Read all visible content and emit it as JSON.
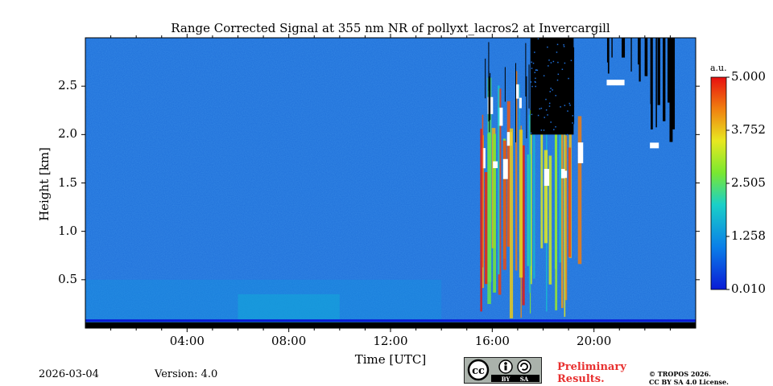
{
  "chart_data": {
    "type": "heatmap",
    "title": "Range Corrected Signal at 355 nm NR of pollyxt_lacros2 at Invercargill",
    "xlabel": "Time [UTC]",
    "ylabel": "Height [km]",
    "xlim": [
      0,
      24
    ],
    "ylim": [
      0,
      3.0
    ],
    "xticks": [
      {
        "value": 4,
        "label": "04:00"
      },
      {
        "value": 8,
        "label": "08:00"
      },
      {
        "value": 12,
        "label": "12:00"
      },
      {
        "value": 16,
        "label": "16:00"
      },
      {
        "value": 20,
        "label": "20:00"
      }
    ],
    "yticks": [
      {
        "value": 0.5,
        "label": "0.5"
      },
      {
        "value": 1.0,
        "label": "1.0"
      },
      {
        "value": 1.5,
        "label": "1.5"
      },
      {
        "value": 2.0,
        "label": "2.0"
      },
      {
        "value": 2.5,
        "label": "2.5"
      }
    ],
    "colorbar": {
      "unit": "a.u.",
      "min": 0.01,
      "max": 5.0,
      "ticks": [
        "5.000",
        "3.752",
        "2.505",
        "1.258",
        "0.010"
      ]
    },
    "features": [
      {
        "name": "boundary-layer",
        "t_start": 0,
        "t_end": 14,
        "h_top": 0.5,
        "value": 1.3
      },
      {
        "name": "aerosol-layer",
        "t_start": 6,
        "t_end": 10,
        "h_top": 0.35,
        "value": 1.5
      },
      {
        "name": "cloud-column",
        "t_start": 15.5,
        "t_end": 19.5,
        "h_bottom": 0.1,
        "h_top": 2.0,
        "value": 4.5
      },
      {
        "name": "cloud-top-cluster",
        "t_start": 17.5,
        "t_end": 19.2,
        "h_bottom": 2.0,
        "h_top": 3.0,
        "value": 0.0
      },
      {
        "name": "cloud-patch",
        "t_start": 20.5,
        "t_end": 22.5,
        "h_bottom": 2.5,
        "h_top": 3.0,
        "value": 5.0
      },
      {
        "name": "cloud-patch-late",
        "t_start": 22.2,
        "t_end": 23.2,
        "h_bottom": 1.85,
        "h_top": 3.0,
        "value": 5.0
      }
    ],
    "background_value": 0.9,
    "colormap": "jet"
  },
  "footer": {
    "date": "2026-03-04",
    "version": "Version: 4.0",
    "preliminary_line1": "Preliminary",
    "preliminary_line2": "Results.",
    "copyright_line1": "© TROPOS 2026.",
    "copyright_line2": "CC BY SA 4.0 License.",
    "license_badge": {
      "cc": "cc",
      "by": "BY",
      "sa": "SA"
    }
  },
  "colors": {
    "background_signal": "#1f6fd9",
    "cloud": "#ffffff",
    "no_data": "#000000",
    "preliminary": "#e8302f"
  }
}
